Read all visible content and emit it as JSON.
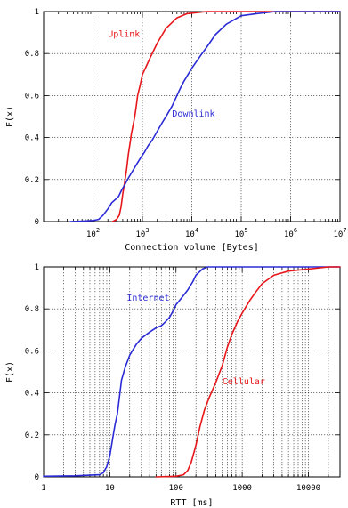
{
  "chart_data": [
    {
      "type": "line",
      "xlabel": "Connection volume [Bytes]",
      "ylabel": "F(x)",
      "xscale": "log",
      "xlim": [
        10,
        10000000
      ],
      "ylim": [
        0,
        1
      ],
      "xticks": [
        {
          "v": 100,
          "base": "10",
          "exp": "2"
        },
        {
          "v": 1000,
          "base": "10",
          "exp": "3"
        },
        {
          "v": 10000,
          "base": "10",
          "exp": "4"
        },
        {
          "v": 100000,
          "base": "10",
          "exp": "5"
        },
        {
          "v": 1000000,
          "base": "10",
          "exp": "6"
        },
        {
          "v": 10000000,
          "base": "10",
          "exp": "7"
        }
      ],
      "yticks": [
        {
          "v": 0,
          "label": "0"
        },
        {
          "v": 0.2,
          "label": "0.2"
        },
        {
          "v": 0.4,
          "label": "0.4"
        },
        {
          "v": 0.6,
          "label": "0.6"
        },
        {
          "v": 0.8,
          "label": "0.8"
        },
        {
          "v": 1,
          "label": "1"
        }
      ],
      "grid": "major",
      "series": [
        {
          "name": "Uplink",
          "color": "#e8161a",
          "label_at": [
            200,
            0.88
          ],
          "points": [
            [
              250,
              0
            ],
            [
              300,
              0.01
            ],
            [
              340,
              0.03
            ],
            [
              370,
              0.07
            ],
            [
              400,
              0.13
            ],
            [
              440,
              0.19
            ],
            [
              480,
              0.25
            ],
            [
              520,
              0.32
            ],
            [
              560,
              0.37
            ],
            [
              600,
              0.42
            ],
            [
              650,
              0.46
            ],
            [
              700,
              0.5
            ],
            [
              750,
              0.55
            ],
            [
              800,
              0.6
            ],
            [
              900,
              0.65
            ],
            [
              1000,
              0.7
            ],
            [
              1200,
              0.74
            ],
            [
              1500,
              0.79
            ],
            [
              2000,
              0.85
            ],
            [
              3000,
              0.92
            ],
            [
              5000,
              0.97
            ],
            [
              8000,
              0.99
            ],
            [
              20000,
              1
            ],
            [
              10000000,
              1
            ]
          ]
        },
        {
          "name": "Downlink",
          "color": "#2b2bd6",
          "label_at": [
            4000,
            0.5
          ],
          "points": [
            [
              35,
              0
            ],
            [
              60,
              0.002
            ],
            [
              100,
              0.005
            ],
            [
              130,
              0.01
            ],
            [
              160,
              0.03
            ],
            [
              200,
              0.06
            ],
            [
              240,
              0.09
            ],
            [
              300,
              0.11
            ],
            [
              330,
              0.12
            ],
            [
              380,
              0.15
            ],
            [
              450,
              0.18
            ],
            [
              530,
              0.21
            ],
            [
              630,
              0.24
            ],
            [
              750,
              0.27
            ],
            [
              900,
              0.3
            ],
            [
              1100,
              0.33
            ],
            [
              1300,
              0.36
            ],
            [
              1600,
              0.39
            ],
            [
              2000,
              0.43
            ],
            [
              2500,
              0.47
            ],
            [
              3000,
              0.5
            ],
            [
              4000,
              0.55
            ],
            [
              5000,
              0.6
            ],
            [
              6000,
              0.64
            ],
            [
              7000,
              0.67
            ],
            [
              10000,
              0.73
            ],
            [
              15000,
              0.79
            ],
            [
              20000,
              0.83
            ],
            [
              30000,
              0.89
            ],
            [
              50000,
              0.94
            ],
            [
              100000,
              0.98
            ],
            [
              200000,
              0.99
            ],
            [
              500000,
              1
            ],
            [
              10000000,
              1
            ]
          ]
        }
      ]
    },
    {
      "type": "line",
      "xlabel": "RTT [ms]",
      "ylabel": "F(x)",
      "xscale": "log",
      "xlim": [
        1,
        30000
      ],
      "ylim": [
        0,
        1
      ],
      "xticks": [
        {
          "v": 1,
          "label": "1"
        },
        {
          "v": 10,
          "label": "10"
        },
        {
          "v": 100,
          "label": "100"
        },
        {
          "v": 1000,
          "label": "1000"
        },
        {
          "v": 10000,
          "label": "10000"
        }
      ],
      "yticks": [
        {
          "v": 0,
          "label": "0"
        },
        {
          "v": 0.2,
          "label": "0.2"
        },
        {
          "v": 0.4,
          "label": "0.4"
        },
        {
          "v": 0.6,
          "label": "0.6"
        },
        {
          "v": 0.8,
          "label": "0.8"
        },
        {
          "v": 1,
          "label": "1"
        }
      ],
      "grid": "minor",
      "series": [
        {
          "name": "Internet",
          "color": "#2b2bd6",
          "label_at": [
            18,
            0.84
          ],
          "points": [
            [
              1,
              0.003
            ],
            [
              3,
              0.005
            ],
            [
              5,
              0.008
            ],
            [
              7,
              0.01
            ],
            [
              8,
              0.02
            ],
            [
              9,
              0.05
            ],
            [
              10,
              0.1
            ],
            [
              11,
              0.18
            ],
            [
              12,
              0.25
            ],
            [
              13,
              0.3
            ],
            [
              14,
              0.38
            ],
            [
              15,
              0.46
            ],
            [
              17,
              0.52
            ],
            [
              20,
              0.58
            ],
            [
              25,
              0.63
            ],
            [
              30,
              0.66
            ],
            [
              40,
              0.69
            ],
            [
              50,
              0.71
            ],
            [
              60,
              0.72
            ],
            [
              70,
              0.74
            ],
            [
              80,
              0.76
            ],
            [
              90,
              0.79
            ],
            [
              100,
              0.82
            ],
            [
              120,
              0.85
            ],
            [
              150,
              0.89
            ],
            [
              180,
              0.93
            ],
            [
              200,
              0.96
            ],
            [
              250,
              0.99
            ],
            [
              300,
              1
            ],
            [
              30000,
              1
            ]
          ]
        },
        {
          "name": "Cellular",
          "color": "#e8161a",
          "label_at": [
            500,
            0.44
          ],
          "points": [
            [
              50,
              0
            ],
            [
              100,
              0.003
            ],
            [
              130,
              0.01
            ],
            [
              150,
              0.03
            ],
            [
              170,
              0.07
            ],
            [
              200,
              0.15
            ],
            [
              230,
              0.24
            ],
            [
              270,
              0.32
            ],
            [
              320,
              0.38
            ],
            [
              400,
              0.45
            ],
            [
              500,
              0.53
            ],
            [
              600,
              0.62
            ],
            [
              700,
              0.68
            ],
            [
              850,
              0.74
            ],
            [
              1000,
              0.78
            ],
            [
              1300,
              0.84
            ],
            [
              1600,
              0.88
            ],
            [
              2000,
              0.92
            ],
            [
              3000,
              0.96
            ],
            [
              5000,
              0.98
            ],
            [
              10000,
              0.99
            ],
            [
              20000,
              1
            ],
            [
              30000,
              1
            ]
          ]
        }
      ]
    }
  ]
}
